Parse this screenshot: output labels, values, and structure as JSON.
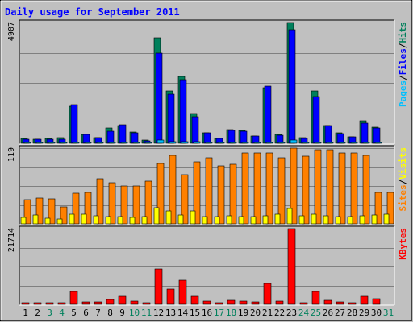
{
  "chart_data": {
    "type": "bar",
    "title": "Daily usage for September 2011",
    "categories": [
      "1",
      "2",
      "3",
      "4",
      "5",
      "6",
      "7",
      "8",
      "9",
      "10",
      "11",
      "12",
      "13",
      "14",
      "15",
      "16",
      "17",
      "18",
      "19",
      "20",
      "21",
      "22",
      "23",
      "24",
      "25",
      "26",
      "27",
      "28",
      "29",
      "30",
      "31"
    ],
    "weekend_days": [
      "3",
      "4",
      "10",
      "11",
      "17",
      "18",
      "24",
      "25",
      "31"
    ],
    "colors": {
      "background": "#c0c0c0",
      "hits": "#00805c",
      "files": "#0000ff",
      "pages": "#00c0ff",
      "visits": "#ffff00",
      "sites": "#ff8000",
      "kbytes": "#ff0000",
      "title": "#0000ff",
      "weekend_label": "#00805c"
    },
    "panels": [
      {
        "name": "hits-files-pages",
        "max_label": "4907",
        "ylim": [
          0,
          4907
        ],
        "legend": [
          "Pages",
          "/",
          "Files",
          "/",
          "Hits"
        ],
        "legend_colors": [
          "#00c0ff",
          "#000000",
          "#0000ff",
          "#000000",
          "#00805c"
        ],
        "series": [
          {
            "name": "Hits",
            "values": [
              180,
              160,
              180,
              220,
              1500,
              360,
              220,
              620,
              730,
              450,
              130,
              4270,
              2120,
              2720,
              1200,
              410,
              200,
              540,
              510,
              300,
              2270,
              360,
              4907,
              220,
              2120,
              720,
              440,
              260,
              900,
              660,
              0
            ]
          },
          {
            "name": "Files",
            "values": [
              160,
              150,
              170,
              150,
              1560,
              360,
              220,
              500,
              740,
              440,
              100,
              3680,
              1980,
              2600,
              1070,
              420,
              200,
              530,
              490,
              290,
              2310,
              340,
              4620,
              200,
              1900,
              720,
              380,
              260,
              820,
              630,
              0
            ]
          },
          {
            "name": "Pages",
            "values": [
              40,
              30,
              30,
              30,
              40,
              20,
              20,
              30,
              20,
              20,
              30,
              140,
              80,
              80,
              60,
              20,
              20,
              30,
              20,
              20,
              40,
              20,
              140,
              10,
              40,
              30,
              20,
              20,
              30,
              30,
              0
            ]
          }
        ]
      },
      {
        "name": "visits-sites",
        "max_label": "119",
        "ylim": [
          0,
          119
        ],
        "legend": [
          "Sites",
          "/",
          "Visits"
        ],
        "legend_colors": [
          "#ff8000",
          "#000000",
          "#ffff00"
        ],
        "series": [
          {
            "name": "Sites",
            "values": [
              38,
              40,
              39,
              26,
              48,
              49,
              71,
              64,
              60,
              59,
              67,
              95,
              107,
              77,
              97,
              104,
              91,
              94,
              111,
              111,
              112,
              104,
              119,
              106,
              117,
              116,
              112,
              111,
              108,
              50,
              49
            ]
          },
          {
            "name": "Visits",
            "values": [
              10,
              14,
              9,
              7,
              15,
              15,
              13,
              12,
              11,
              10,
              11,
              25,
              20,
              14,
              20,
              12,
              11,
              13,
              12,
              11,
              13,
              15,
              24,
              13,
              15,
              13,
              11,
              12,
              13,
              14,
              15
            ]
          }
        ]
      },
      {
        "name": "kbytes",
        "max_label": "21714",
        "ylim": [
          0,
          21714
        ],
        "legend": [
          "KBytes"
        ],
        "legend_colors": [
          "#ff0000"
        ],
        "series": [
          {
            "name": "KBytes",
            "values": [
              400,
              400,
              500,
              400,
              3800,
              700,
              600,
              1400,
              2400,
              900,
              500,
              10100,
              4300,
              6900,
              2400,
              1000,
              500,
              1100,
              900,
              600,
              6000,
              900,
              21714,
              400,
              3800,
              1100,
              800,
              500,
              2400,
              1600,
              0
            ]
          }
        ]
      }
    ]
  }
}
